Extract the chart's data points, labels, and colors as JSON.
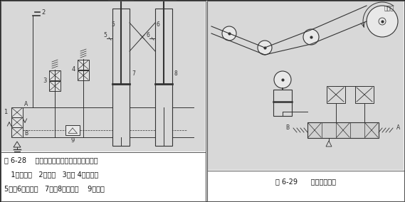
{
  "fig_width": 5.69,
  "fig_height": 2.84,
  "dpi": 100,
  "bg_color": "#ffffff",
  "left_caption_lines": [
    "图 6-28    使工作台水平升降的同步控制回路",
    "   1）换向阀   2）油筱   3）、 4）二通阀",
    "5）、6）放气塞   7）、8）气液缸    9）棭阀"
  ],
  "right_caption": "图 6-29      张力控制回路",
  "font_size": 7.0,
  "text_color": "#111111",
  "diagram_bg": "#d8d8d8",
  "panel_bg": "#f4f4f4",
  "border_color": "#333333"
}
